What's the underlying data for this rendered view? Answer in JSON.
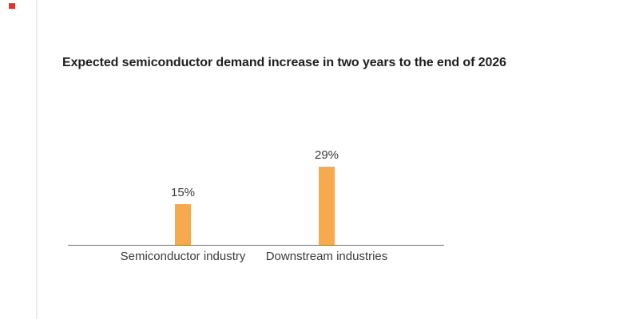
{
  "page": {
    "background_color": "#ffffff"
  },
  "decorations": {
    "red_dash_color": "#e63328",
    "left_edge_line_color": "#ececec"
  },
  "chart_data": {
    "type": "bar",
    "title": "Expected semiconductor demand increase in two years to the end of 2026",
    "categories": [
      "Semiconductor industry",
      "Downstream industries"
    ],
    "values": [
      15,
      29
    ],
    "value_labels": [
      "15%",
      "29%"
    ],
    "unit": "%",
    "ylim": [
      0,
      32
    ],
    "bar_color": "#f6a94d",
    "axis_color": "#6e6e6e",
    "label_color": "#3b3b3b",
    "title_color": "#1f1f1f",
    "grid": false,
    "legend": false,
    "y_axis_visible": false,
    "orientation": "vertical"
  }
}
